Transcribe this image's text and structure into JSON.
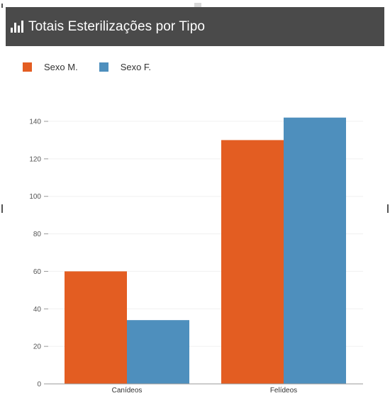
{
  "panel": {
    "title": "Totais Esterilizações por Tipo",
    "icon": "bar-chart-icon",
    "header_color": "#4a4a4a"
  },
  "legend": {
    "position": "top-left",
    "items": [
      {
        "label": "Sexo M.",
        "color": "#e35d22"
      },
      {
        "label": "Sexo F.",
        "color": "#4e8fbd"
      }
    ]
  },
  "chart_data": {
    "type": "bar",
    "categories": [
      "Canídeos",
      "Felídeos"
    ],
    "series": [
      {
        "name": "Sexo M.",
        "values": [
          60,
          130
        ],
        "color": "#e35d22"
      },
      {
        "name": "Sexo F.",
        "values": [
          34,
          142
        ],
        "color": "#4e8fbd"
      }
    ],
    "ylim": [
      0,
      140
    ],
    "yticks": [
      0,
      20,
      40,
      60,
      80,
      100,
      120,
      140
    ],
    "grid": true,
    "legend": "top-left"
  }
}
